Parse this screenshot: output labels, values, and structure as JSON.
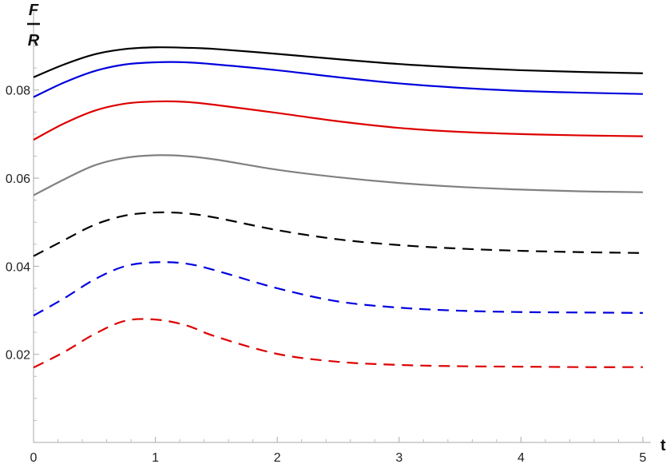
{
  "chart_data": {
    "type": "line",
    "ylabel_numerator": "F",
    "ylabel_denominator": "R",
    "xlabel": "t",
    "xlim": [
      0,
      5
    ],
    "ylim": [
      0,
      0.095
    ],
    "x_ticks": [
      0,
      1,
      2,
      3,
      4,
      5
    ],
    "x_tick_labels": [
      "0",
      "1",
      "2",
      "3",
      "4",
      "5"
    ],
    "y_ticks": [
      0.02,
      0.04,
      0.06,
      0.08
    ],
    "y_tick_labels": [
      "0.02",
      "0.04",
      "0.06",
      "0.08"
    ],
    "grid": false,
    "x": [
      0,
      0.25,
      0.5,
      0.75,
      1,
      1.25,
      1.5,
      2,
      2.5,
      3,
      3.5,
      4,
      4.5,
      5
    ],
    "series": [
      {
        "color": "#000000",
        "dash": "solid",
        "values": [
          0.0829,
          0.0858,
          0.0881,
          0.0893,
          0.0897,
          0.0896,
          0.0893,
          0.0882,
          0.087,
          0.0859,
          0.0851,
          0.0845,
          0.0841,
          0.0838
        ]
      },
      {
        "color": "#0000dd",
        "dash": "solid",
        "values": [
          0.0784,
          0.0817,
          0.0843,
          0.0858,
          0.0863,
          0.0863,
          0.0858,
          0.0845,
          0.0829,
          0.0815,
          0.0805,
          0.0798,
          0.0794,
          0.0791
        ]
      },
      {
        "color": "#dd0000",
        "dash": "solid",
        "values": [
          0.0687,
          0.0724,
          0.0753,
          0.0769,
          0.0774,
          0.0773,
          0.0766,
          0.0748,
          0.0729,
          0.0714,
          0.0705,
          0.07,
          0.0697,
          0.0695
        ]
      },
      {
        "color": "#808080",
        "dash": "solid",
        "values": [
          0.0561,
          0.0597,
          0.0629,
          0.0646,
          0.0652,
          0.065,
          0.0642,
          0.0619,
          0.0602,
          0.0589,
          0.058,
          0.0574,
          0.057,
          0.0568
        ]
      },
      {
        "color": "#000000",
        "dash": "dashed",
        "values": [
          0.0423,
          0.0459,
          0.0494,
          0.0515,
          0.0522,
          0.052,
          0.051,
          0.0482,
          0.0461,
          0.0448,
          0.044,
          0.0435,
          0.0432,
          0.043
        ]
      },
      {
        "color": "#0000dd",
        "dash": "dashed",
        "values": [
          0.0288,
          0.0327,
          0.037,
          0.04,
          0.0409,
          0.0406,
          0.039,
          0.035,
          0.032,
          0.0306,
          0.0299,
          0.0296,
          0.0295,
          0.0294
        ]
      },
      {
        "color": "#dd0000",
        "dash": "dashed",
        "values": [
          0.017,
          0.0205,
          0.0246,
          0.0276,
          0.0279,
          0.0266,
          0.024,
          0.0201,
          0.0183,
          0.0176,
          0.0173,
          0.0172,
          0.0171,
          0.0171
        ]
      }
    ]
  }
}
